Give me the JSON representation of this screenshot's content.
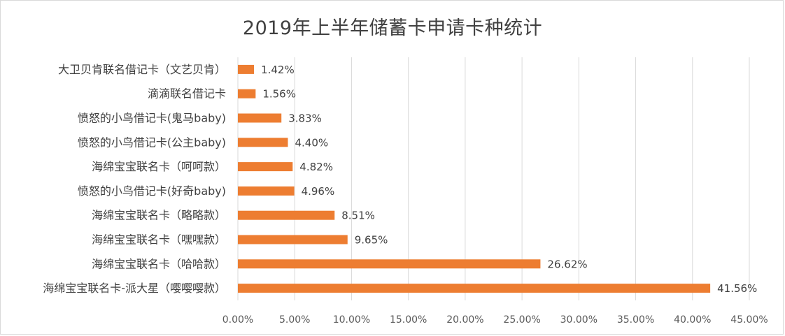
{
  "chart_data": {
    "type": "bar",
    "orientation": "horizontal",
    "title": "2019年上半年储蓄卡申请卡种统计",
    "categories": [
      "大卫贝肯联名借记卡（文艺贝肯）",
      "滴滴联名借记卡",
      "愤怒的小鸟借记卡(鬼马baby)",
      "愤怒的小鸟借记卡(公主baby)",
      "海绵宝宝联名卡（呵呵款）",
      "愤怒的小鸟借记卡(好奇baby)",
      "海绵宝宝联名卡（略略款）",
      "海绵宝宝联名卡（嘿嘿款）",
      "海绵宝宝联名卡（哈哈款）",
      "海绵宝宝联名卡-派大星（嘤嘤嘤款）"
    ],
    "values": [
      1.42,
      1.56,
      3.83,
      4.4,
      4.82,
      4.96,
      8.51,
      9.65,
      26.62,
      41.56
    ],
    "data_labels": [
      "1.42%",
      "1.56%",
      "3.83%",
      "4.40%",
      "4.82%",
      "4.96%",
      "8.51%",
      "9.65%",
      "26.62%",
      "41.56%"
    ],
    "xlim": [
      0,
      45
    ],
    "xticks": [
      "0.00%",
      "5.00%",
      "10.00%",
      "15.00%",
      "20.00%",
      "25.00%",
      "30.00%",
      "35.00%",
      "40.00%",
      "45.00%"
    ],
    "grid": "vertical",
    "bar_color": "#ED7D31",
    "grid_color": "#d9d9d9"
  }
}
